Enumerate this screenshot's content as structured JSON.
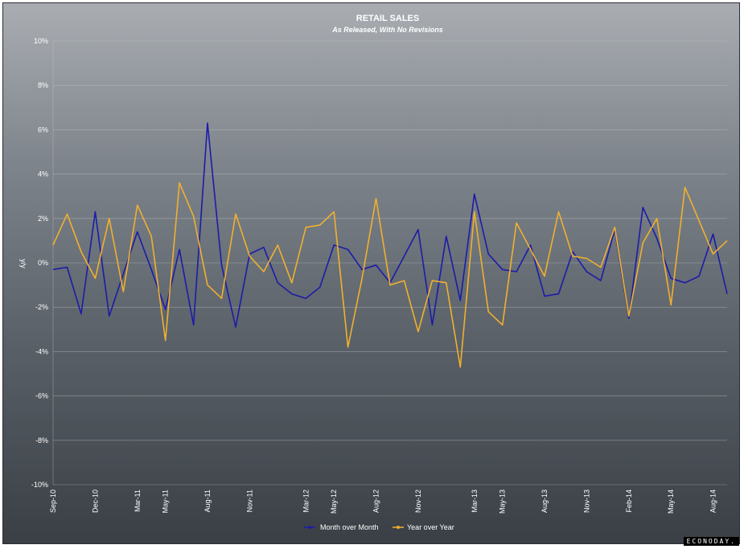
{
  "colors": {
    "mom": "#1c1ca8",
    "yoy": "#f0b030",
    "grid": "#c8ccd0"
  },
  "logo_text": "ECONODAY.",
  "chart_data": {
    "type": "line",
    "title": "RETAIL SALES",
    "subtitle": "As Released, With No Revisions",
    "ylabel": "y/y",
    "xlabel": "",
    "ylim": [
      -10,
      10
    ],
    "y_ticks": [
      "10%",
      "8%",
      "6%",
      "4%",
      "2%",
      "0%",
      "-2%",
      "-4%",
      "-6%",
      "-8%",
      "-10%"
    ],
    "x_tick_labels": [
      "Sep-10",
      "Dec-10",
      "Mar-11",
      "May-11",
      "Aug-11",
      "Nov-11",
      "Mar-12",
      "May-12",
      "Aug-12",
      "Nov-12",
      "Mar-13",
      "May-13",
      "Aug-13",
      "Nov-13",
      "Feb-14",
      "May-14",
      "Aug-14"
    ],
    "legend_position": "bottom",
    "grid": true,
    "series": [
      {
        "name": "Month over Month",
        "values": [
          -0.3,
          -0.2,
          -2.3,
          2.3,
          -2.4,
          -0.5,
          1.4,
          -0.3,
          -2.1,
          0.6,
          -2.8,
          6.3,
          -0.1,
          -2.9,
          0.4,
          0.7,
          -0.9,
          -1.4,
          -1.6,
          -1.1,
          0.8,
          0.6,
          -0.3,
          -0.1,
          -0.9,
          0.3,
          1.5,
          -2.8,
          1.2,
          -1.7,
          3.1,
          0.4,
          -0.3,
          -0.4,
          0.8,
          -1.5,
          -1.4,
          0.5,
          -0.4,
          -0.8,
          1.5,
          -2.5,
          2.5,
          1.1,
          -0.7,
          -0.9,
          -0.6,
          1.3,
          -1.4
        ]
      },
      {
        "name": "Year over Year",
        "values": [
          0.8,
          2.2,
          0.5,
          -0.7,
          2.0,
          -1.3,
          2.6,
          1.2,
          -3.5,
          3.6,
          2.1,
          -1.0,
          -1.6,
          2.2,
          0.3,
          -0.4,
          0.8,
          -0.9,
          1.6,
          1.7,
          2.3,
          -3.8,
          -0.7,
          2.9,
          -1.0,
          -0.8,
          -3.1,
          -0.8,
          -0.9,
          -4.7,
          2.3,
          -2.2,
          -2.8,
          1.8,
          0.6,
          -0.6,
          2.3,
          0.3,
          0.2,
          -0.2,
          1.6,
          -2.4,
          0.9,
          2.0,
          -1.9,
          3.4,
          1.9,
          0.4,
          1.0
        ]
      }
    ]
  }
}
